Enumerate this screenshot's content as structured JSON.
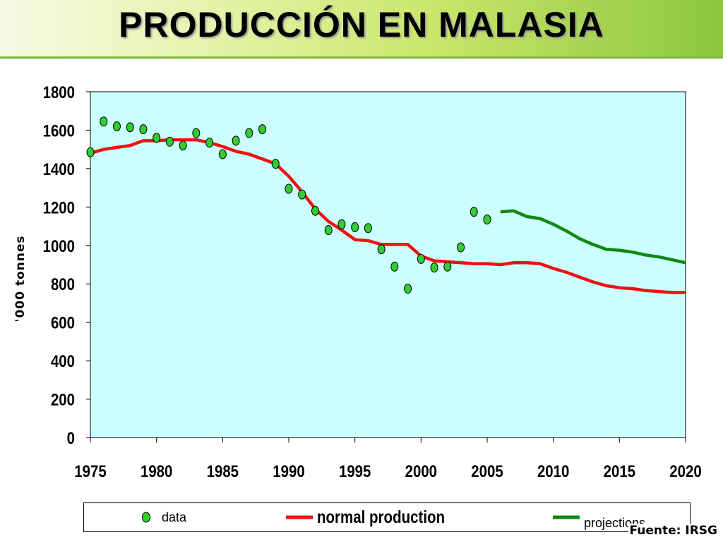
{
  "page": {
    "title": "PRODUCCIÓN EN MALASIA",
    "source": "Fuente: IRSG"
  },
  "colors": {
    "plot_bg": "#ccffff",
    "data_marker": "#33cc33",
    "normal_line": "#ee1111",
    "projection_line": "#118811"
  },
  "chart_data": {
    "type": "line",
    "ylabel": "'000 tonnes",
    "xlim": [
      1975,
      2020
    ],
    "ylim": [
      0,
      1800
    ],
    "xticks": [
      1975,
      1980,
      1985,
      1990,
      1995,
      2000,
      2005,
      2010,
      2015,
      2020
    ],
    "yticks": [
      0,
      200,
      400,
      600,
      800,
      1000,
      1200,
      1400,
      1600,
      1800
    ],
    "grid": false,
    "legend_position": "bottom",
    "series": [
      {
        "name": "data",
        "kind": "scatter",
        "points": [
          [
            1975,
            1485
          ],
          [
            1976,
            1645
          ],
          [
            1977,
            1620
          ],
          [
            1978,
            1615
          ],
          [
            1979,
            1605
          ],
          [
            1980,
            1560
          ],
          [
            1981,
            1540
          ],
          [
            1982,
            1520
          ],
          [
            1983,
            1585
          ],
          [
            1984,
            1535
          ],
          [
            1985,
            1475
          ],
          [
            1986,
            1545
          ],
          [
            1987,
            1585
          ],
          [
            1988,
            1605
          ],
          [
            1989,
            1425
          ],
          [
            1990,
            1295
          ],
          [
            1991,
            1265
          ],
          [
            1992,
            1180
          ],
          [
            1993,
            1080
          ],
          [
            1994,
            1110
          ],
          [
            1995,
            1095
          ],
          [
            1996,
            1090
          ],
          [
            1997,
            980
          ],
          [
            1998,
            890
          ],
          [
            1999,
            775
          ],
          [
            2000,
            930
          ],
          [
            2001,
            885
          ],
          [
            2002,
            890
          ],
          [
            2003,
            990
          ],
          [
            2004,
            1175
          ],
          [
            2005,
            1135
          ]
        ]
      },
      {
        "name": "normal production",
        "kind": "line",
        "points": [
          [
            1975,
            1480
          ],
          [
            1976,
            1500
          ],
          [
            1977,
            1510
          ],
          [
            1978,
            1520
          ],
          [
            1979,
            1545
          ],
          [
            1980,
            1545
          ],
          [
            1981,
            1550
          ],
          [
            1982,
            1550
          ],
          [
            1983,
            1550
          ],
          [
            1984,
            1535
          ],
          [
            1985,
            1515
          ],
          [
            1986,
            1490
          ],
          [
            1987,
            1475
          ],
          [
            1988,
            1450
          ],
          [
            1989,
            1425
          ],
          [
            1990,
            1360
          ],
          [
            1991,
            1280
          ],
          [
            1992,
            1190
          ],
          [
            1993,
            1125
          ],
          [
            1994,
            1080
          ],
          [
            1995,
            1030
          ],
          [
            1996,
            1025
          ],
          [
            1997,
            1005
          ],
          [
            1998,
            1005
          ],
          [
            1999,
            1005
          ],
          [
            2000,
            945
          ],
          [
            2001,
            920
          ],
          [
            2002,
            915
          ],
          [
            2003,
            910
          ],
          [
            2004,
            905
          ],
          [
            2005,
            905
          ],
          [
            2006,
            900
          ],
          [
            2007,
            910
          ],
          [
            2008,
            910
          ],
          [
            2009,
            905
          ],
          [
            2010,
            880
          ],
          [
            2011,
            860
          ],
          [
            2012,
            835
          ],
          [
            2013,
            810
          ],
          [
            2014,
            790
          ],
          [
            2015,
            780
          ],
          [
            2016,
            775
          ],
          [
            2017,
            765
          ],
          [
            2018,
            760
          ],
          [
            2019,
            755
          ],
          [
            2020,
            755
          ]
        ]
      },
      {
        "name": "projections",
        "kind": "line",
        "points": [
          [
            2006,
            1175
          ],
          [
            2007,
            1180
          ],
          [
            2008,
            1150
          ],
          [
            2009,
            1140
          ],
          [
            2010,
            1110
          ],
          [
            2011,
            1075
          ],
          [
            2012,
            1035
          ],
          [
            2013,
            1005
          ],
          [
            2014,
            980
          ],
          [
            2015,
            975
          ],
          [
            2016,
            965
          ],
          [
            2017,
            950
          ],
          [
            2018,
            940
          ],
          [
            2019,
            925
          ],
          [
            2020,
            910
          ]
        ]
      }
    ]
  }
}
